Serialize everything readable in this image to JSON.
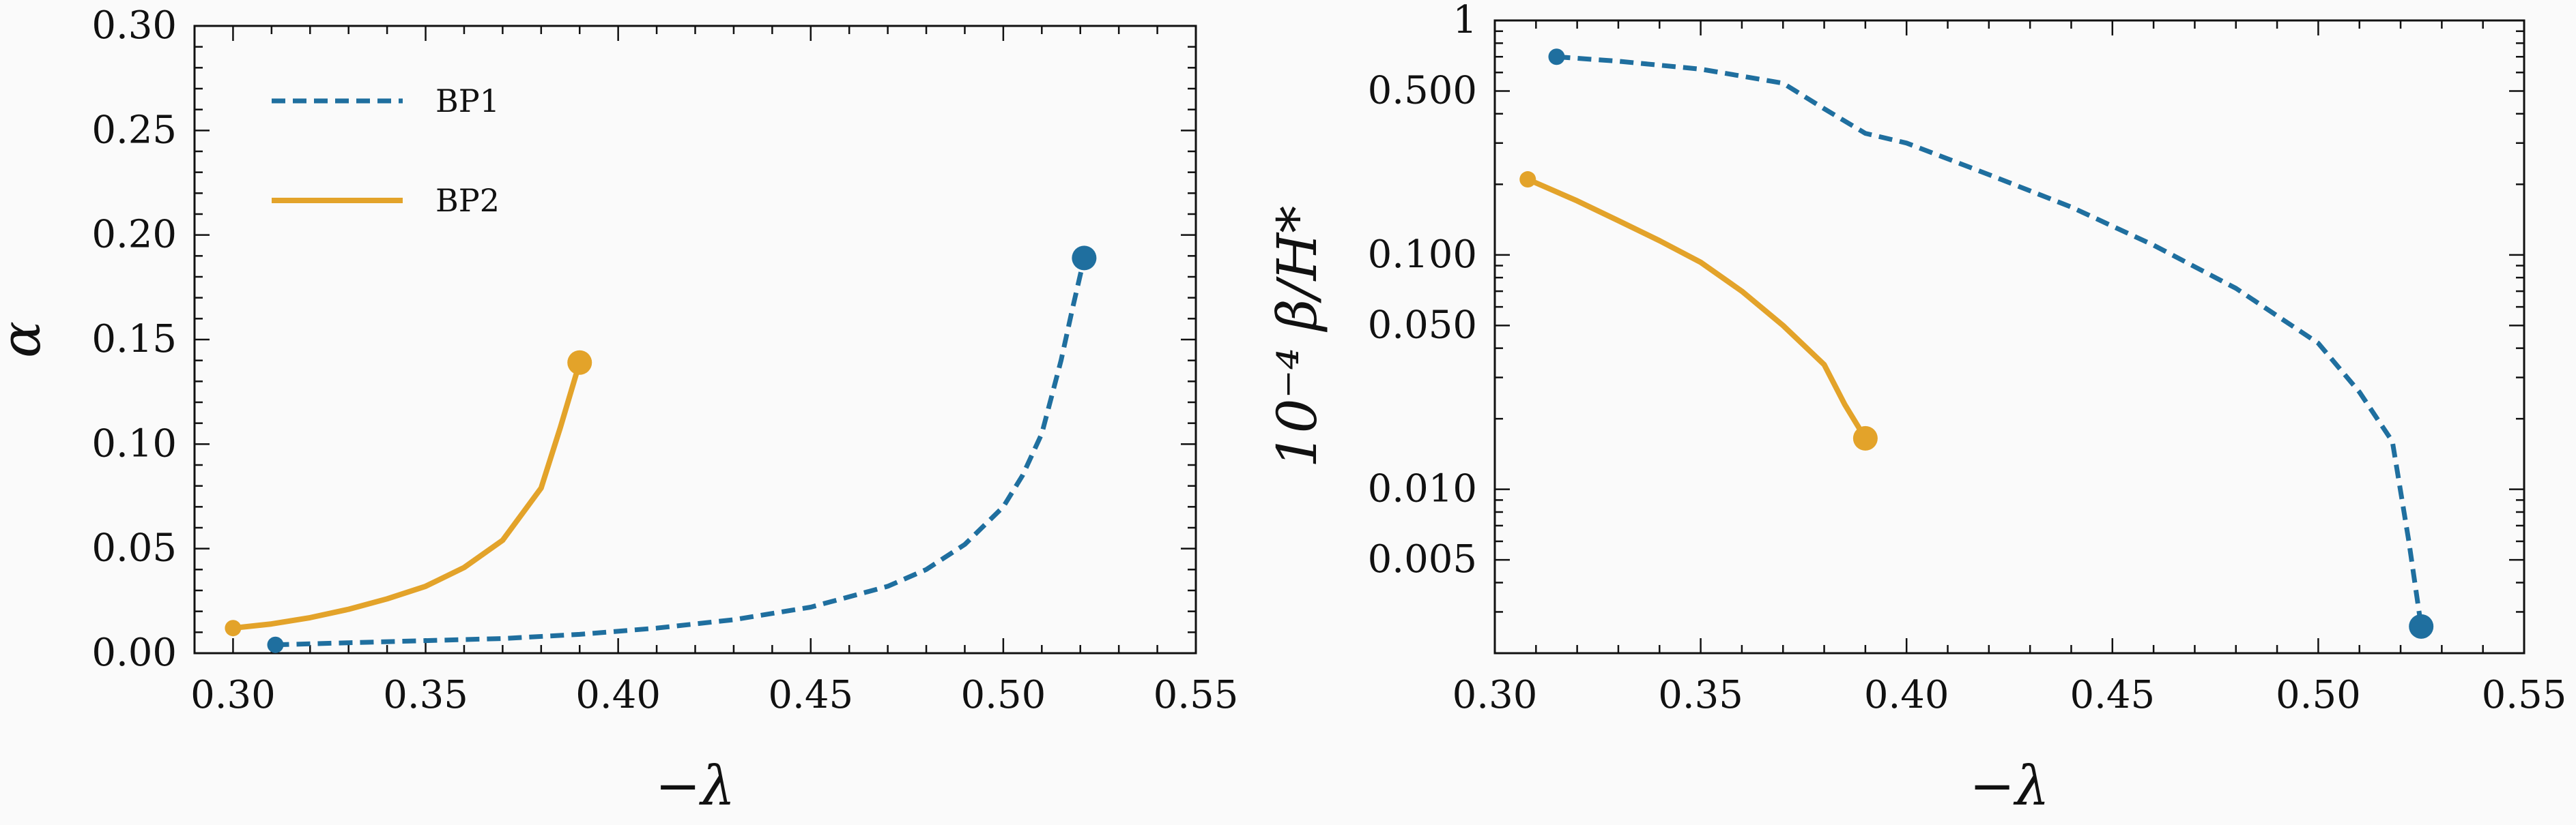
{
  "chart_data": [
    {
      "type": "line",
      "xlabel": "−λ",
      "ylabel": "α",
      "xlim": [
        0.29,
        0.55
      ],
      "ylim": [
        0.0,
        0.3
      ],
      "xticks": [
        0.3,
        0.35,
        0.4,
        0.45,
        0.5,
        0.55
      ],
      "xtick_labels": [
        "0.30",
        "0.35",
        "0.40",
        "0.45",
        "0.50",
        "0.55"
      ],
      "yticks": [
        0.0,
        0.05,
        0.1,
        0.15,
        0.2,
        0.25,
        0.3
      ],
      "ytick_labels": [
        "0.00",
        "0.05",
        "0.10",
        "0.15",
        "0.20",
        "0.25",
        "0.30"
      ],
      "yscale": "linear",
      "grid": false,
      "legend_position": "top-left",
      "series": [
        {
          "name": "BP1",
          "color": "#1f6f9f",
          "style": "dashed",
          "x": [
            0.311,
            0.33,
            0.35,
            0.37,
            0.39,
            0.41,
            0.43,
            0.45,
            0.47,
            0.48,
            0.49,
            0.5,
            0.505,
            0.51,
            0.515,
            0.518,
            0.521
          ],
          "y": [
            0.004,
            0.005,
            0.006,
            0.007,
            0.009,
            0.012,
            0.016,
            0.022,
            0.032,
            0.04,
            0.052,
            0.07,
            0.085,
            0.105,
            0.14,
            0.165,
            0.189
          ],
          "endpoint": [
            0.521,
            0.189
          ]
        },
        {
          "name": "BP2",
          "color": "#e3a32a",
          "style": "solid",
          "x": [
            0.3,
            0.31,
            0.32,
            0.33,
            0.34,
            0.35,
            0.36,
            0.37,
            0.38,
            0.385,
            0.39
          ],
          "y": [
            0.012,
            0.014,
            0.017,
            0.021,
            0.026,
            0.032,
            0.041,
            0.054,
            0.079,
            0.108,
            0.139
          ],
          "endpoint": [
            0.39,
            0.139
          ]
        }
      ]
    },
    {
      "type": "line",
      "xlabel": "−λ",
      "ylabel": "10⁻⁴ β/H*",
      "xlim": [
        0.3,
        0.55
      ],
      "ylim": [
        0.002,
        1.0
      ],
      "xticks": [
        0.3,
        0.35,
        0.4,
        0.45,
        0.5,
        0.55
      ],
      "xtick_labels": [
        "0.30",
        "0.35",
        "0.40",
        "0.45",
        "0.50",
        "0.55"
      ],
      "yticks": [
        0.005,
        0.01,
        0.05,
        0.1,
        0.5,
        1.0
      ],
      "ytick_labels": [
        "0.005",
        "0.010",
        "0.050",
        "0.100",
        "0.500",
        "1"
      ],
      "yscale": "log",
      "grid": false,
      "series": [
        {
          "name": "BP1",
          "color": "#1f6f9f",
          "style": "dashed",
          "x": [
            0.315,
            0.33,
            0.35,
            0.37,
            0.38,
            0.39,
            0.4,
            0.42,
            0.44,
            0.46,
            0.48,
            0.5,
            0.51,
            0.518,
            0.522,
            0.525
          ],
          "y": [
            0.7,
            0.67,
            0.62,
            0.54,
            0.42,
            0.33,
            0.3,
            0.22,
            0.16,
            0.11,
            0.072,
            0.042,
            0.026,
            0.016,
            0.006,
            0.0026
          ],
          "endpoint": [
            0.525,
            0.0026
          ]
        },
        {
          "name": "BP2",
          "color": "#e3a32a",
          "style": "solid",
          "x": [
            0.308,
            0.32,
            0.33,
            0.34,
            0.35,
            0.36,
            0.37,
            0.38,
            0.385,
            0.39
          ],
          "y": [
            0.21,
            0.17,
            0.14,
            0.115,
            0.093,
            0.07,
            0.05,
            0.034,
            0.023,
            0.0165
          ],
          "endpoint": [
            0.39,
            0.0165
          ]
        }
      ]
    }
  ]
}
